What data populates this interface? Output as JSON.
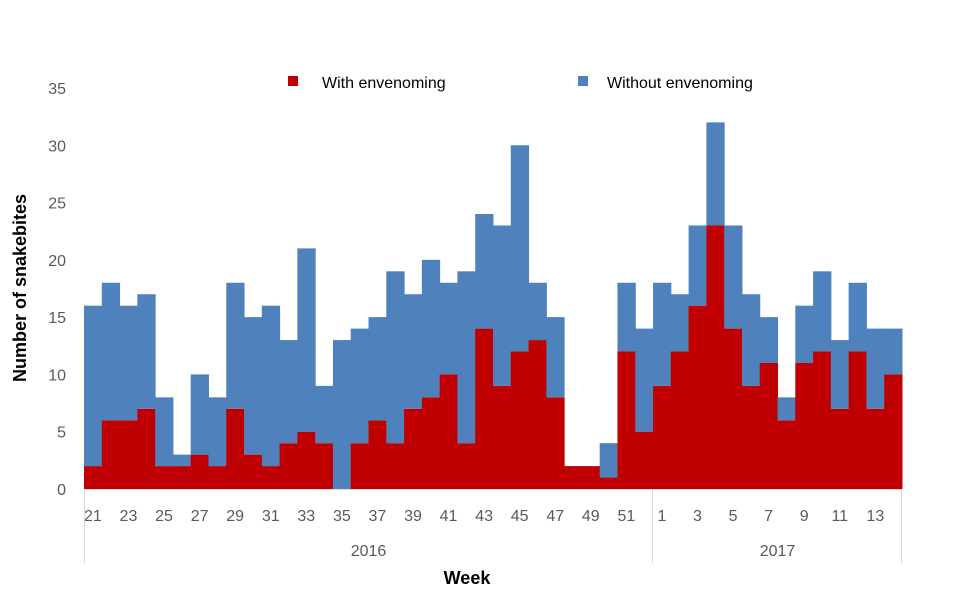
{
  "chart_data": {
    "type": "bar",
    "stacked": true,
    "categories": [
      {
        "week": "21",
        "year": "2016"
      },
      {
        "week": "22",
        "year": "2016"
      },
      {
        "week": "23",
        "year": "2016"
      },
      {
        "week": "24",
        "year": "2016"
      },
      {
        "week": "25",
        "year": "2016"
      },
      {
        "week": "26",
        "year": "2016"
      },
      {
        "week": "27",
        "year": "2016"
      },
      {
        "week": "28",
        "year": "2016"
      },
      {
        "week": "29",
        "year": "2016"
      },
      {
        "week": "30",
        "year": "2016"
      },
      {
        "week": "31",
        "year": "2016"
      },
      {
        "week": "32",
        "year": "2016"
      },
      {
        "week": "33",
        "year": "2016"
      },
      {
        "week": "34",
        "year": "2016"
      },
      {
        "week": "35",
        "year": "2016"
      },
      {
        "week": "36",
        "year": "2016"
      },
      {
        "week": "37",
        "year": "2016"
      },
      {
        "week": "38",
        "year": "2016"
      },
      {
        "week": "39",
        "year": "2016"
      },
      {
        "week": "40",
        "year": "2016"
      },
      {
        "week": "41",
        "year": "2016"
      },
      {
        "week": "42",
        "year": "2016"
      },
      {
        "week": "43",
        "year": "2016"
      },
      {
        "week": "44",
        "year": "2016"
      },
      {
        "week": "45",
        "year": "2016"
      },
      {
        "week": "46",
        "year": "2016"
      },
      {
        "week": "47",
        "year": "2016"
      },
      {
        "week": "48",
        "year": "2016"
      },
      {
        "week": "49",
        "year": "2016"
      },
      {
        "week": "50",
        "year": "2016"
      },
      {
        "week": "51",
        "year": "2016"
      },
      {
        "week": "52",
        "year": "2016"
      },
      {
        "week": "1",
        "year": "2017"
      },
      {
        "week": "2",
        "year": "2017"
      },
      {
        "week": "3",
        "year": "2017"
      },
      {
        "week": "4",
        "year": "2017"
      },
      {
        "week": "5",
        "year": "2017"
      },
      {
        "week": "6",
        "year": "2017"
      },
      {
        "week": "7",
        "year": "2017"
      },
      {
        "week": "8",
        "year": "2017"
      },
      {
        "week": "9",
        "year": "2017"
      },
      {
        "week": "10",
        "year": "2017"
      },
      {
        "week": "11",
        "year": "2017"
      },
      {
        "week": "12",
        "year": "2017"
      },
      {
        "week": "13",
        "year": "2017"
      },
      {
        "week": "14",
        "year": "2017"
      }
    ],
    "tick_labels": [
      "21",
      "23",
      "25",
      "27",
      "29",
      "31",
      "33",
      "35",
      "37",
      "39",
      "41",
      "43",
      "45",
      "47",
      "49",
      "51",
      "1",
      "3",
      "5",
      "7",
      "9",
      "11",
      "13"
    ],
    "year_groups": [
      {
        "label": "2016",
        "weeks": 32
      },
      {
        "label": "2017",
        "weeks": 14
      }
    ],
    "series": [
      {
        "name": "With envenoming",
        "color": "#C00000",
        "values": [
          2,
          6,
          6,
          7,
          2,
          2,
          3,
          2,
          7,
          3,
          2,
          4,
          5,
          4,
          0,
          4,
          6,
          4,
          7,
          8,
          10,
          4,
          14,
          9,
          12,
          13,
          8,
          2,
          2,
          1,
          12,
          5,
          9,
          12,
          16,
          23,
          14,
          9,
          11,
          6,
          11,
          12,
          7,
          12,
          7,
          10
        ]
      },
      {
        "name": "Without envenoming",
        "color": "#4F81BD",
        "values": [
          14,
          12,
          10,
          10,
          6,
          1,
          7,
          6,
          11,
          12,
          14,
          9,
          16,
          5,
          13,
          10,
          9,
          15,
          10,
          12,
          8,
          15,
          10,
          14,
          18,
          5,
          7,
          0,
          0,
          3,
          6,
          9,
          9,
          5,
          7,
          9,
          9,
          8,
          4,
          2,
          5,
          7,
          6,
          6,
          7,
          4
        ]
      }
    ],
    "xlabel": "Week",
    "ylabel": "Number of snakebites",
    "ylim": [
      0,
      35
    ],
    "yticks": [
      0,
      5,
      10,
      15,
      20,
      25,
      30,
      35
    ],
    "grid": false,
    "legend_position": "top"
  }
}
